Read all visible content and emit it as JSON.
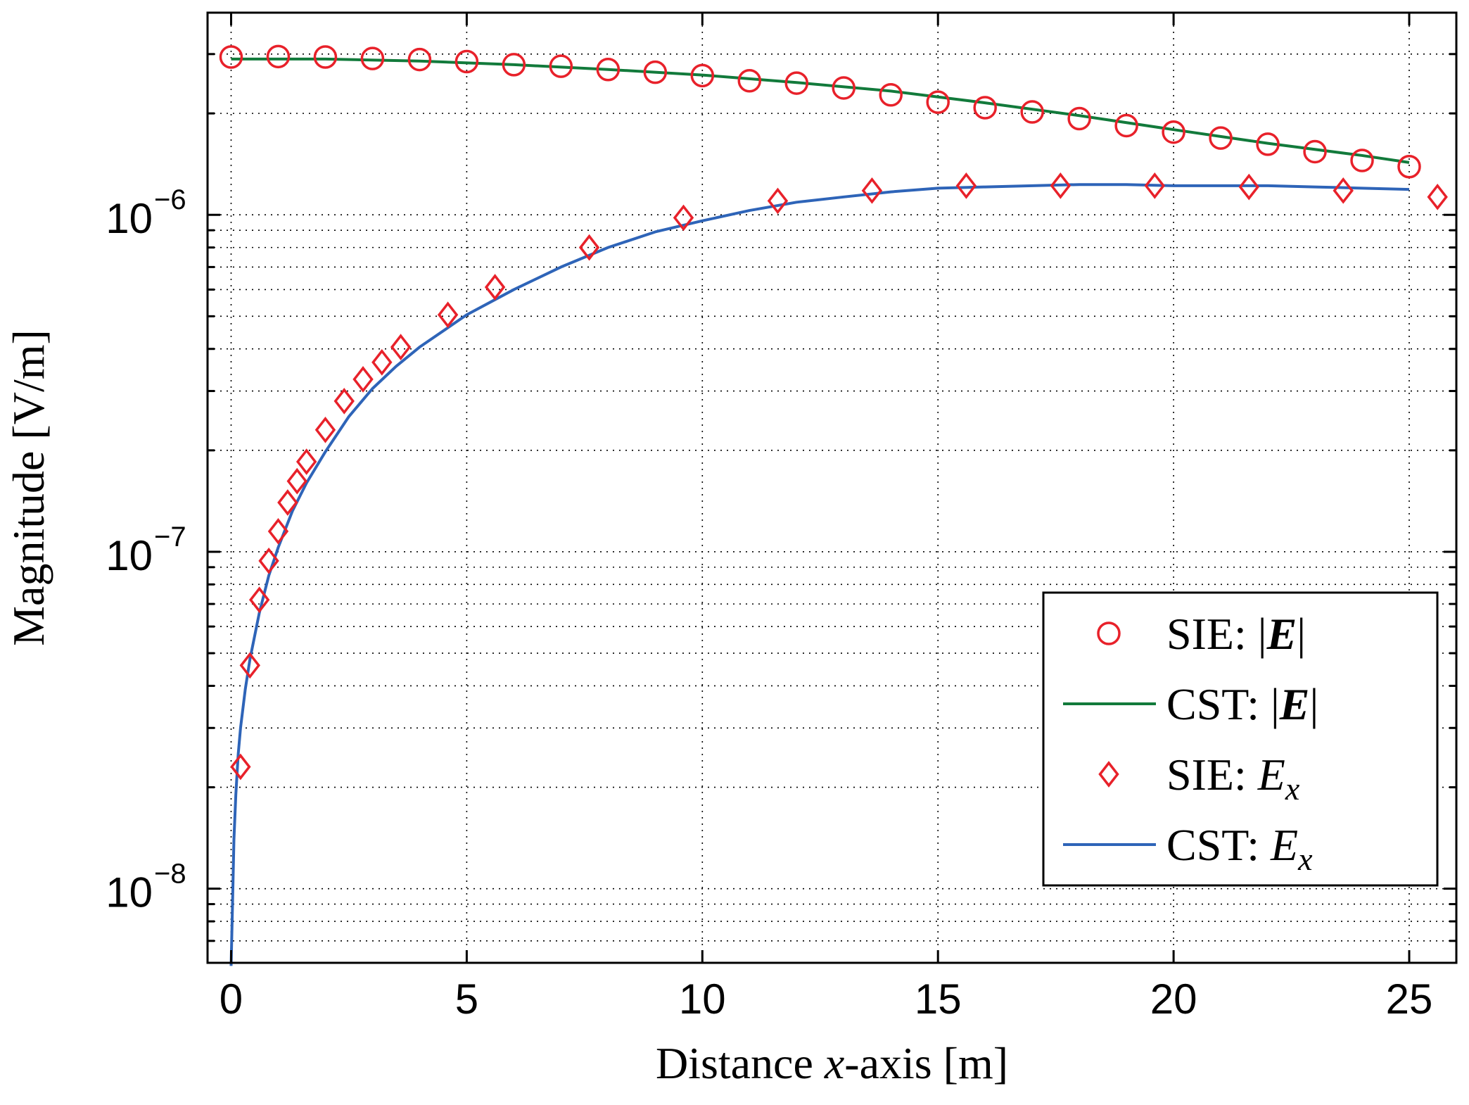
{
  "chart_data": {
    "type": "line",
    "title": "",
    "xlabel_parts": {
      "pre": "Distance ",
      "var": "x",
      "post": "-axis [m]"
    },
    "ylabel": "Magnitude [V/m]",
    "xlim": [
      -0.5,
      26.0
    ],
    "ylim_log10": [
      -8.22,
      -5.4
    ],
    "xscale": "linear",
    "yscale": "log",
    "grid": true,
    "legend_position": "bottom-right",
    "x_ticks": [
      0,
      5,
      10,
      15,
      20,
      25
    ],
    "x_tick_labels": [
      "0",
      "5",
      "10",
      "15",
      "20",
      "25"
    ],
    "y_ticks_log10": [
      -8,
      -7,
      -6
    ],
    "y_tick_labels": [
      {
        "base": "10",
        "exp": "−8"
      },
      {
        "base": "10",
        "exp": "−7"
      },
      {
        "base": "10",
        "exp": "−6"
      }
    ],
    "legend": [
      {
        "key": "sie_e",
        "label_prefix": "SIE: ",
        "expr": "|E|",
        "marker": "circle",
        "color": "#e8212a"
      },
      {
        "key": "cst_e",
        "label_prefix": "CST: ",
        "expr": "|E|",
        "marker": "line",
        "color": "#127a3b"
      },
      {
        "key": "sie_ex",
        "label_prefix": "SIE: ",
        "expr": "E_x",
        "marker": "diamond",
        "color": "#e8212a"
      },
      {
        "key": "cst_ex",
        "label_prefix": "CST: ",
        "expr": "E_x",
        "marker": "line",
        "color": "#2e64b8"
      }
    ],
    "series": [
      {
        "name": "SIE: |E|",
        "kind": "marker",
        "marker": "circle",
        "color": "#e8212a",
        "x": [
          0,
          1,
          2,
          3,
          4,
          5,
          6,
          7,
          8,
          9,
          10,
          11,
          12,
          13,
          14,
          15,
          16,
          17,
          18,
          19,
          20,
          21,
          22,
          23,
          24,
          25
        ],
        "y": [
          2.94e-06,
          2.95e-06,
          2.94e-06,
          2.91e-06,
          2.89e-06,
          2.85e-06,
          2.79e-06,
          2.76e-06,
          2.7e-06,
          2.65e-06,
          2.59e-06,
          2.5e-06,
          2.46e-06,
          2.38e-06,
          2.27e-06,
          2.16e-06,
          2.08e-06,
          2.02e-06,
          1.93e-06,
          1.84e-06,
          1.76e-06,
          1.69e-06,
          1.62e-06,
          1.54e-06,
          1.45e-06,
          1.39e-06
        ]
      },
      {
        "name": "CST: |E|",
        "kind": "line",
        "color": "#127a3b",
        "x": [
          0,
          2,
          4,
          6,
          8,
          10,
          12,
          14,
          16,
          18,
          20,
          22,
          24,
          25
        ],
        "y": [
          2.9e-06,
          2.9e-06,
          2.86e-06,
          2.79e-06,
          2.7e-06,
          2.6e-06,
          2.47e-06,
          2.33e-06,
          2.15e-06,
          1.97e-06,
          1.79e-06,
          1.63e-06,
          1.5e-06,
          1.43e-06
        ]
      },
      {
        "name": "SIE: E_x",
        "kind": "marker",
        "marker": "diamond",
        "color": "#e8212a",
        "x": [
          0.2,
          0.4,
          0.6,
          0.8,
          1.0,
          1.2,
          1.4,
          1.6,
          2.0,
          2.4,
          2.8,
          3.2,
          3.6,
          4.6,
          5.6,
          7.6,
          9.6,
          11.6,
          13.6,
          15.6,
          17.6,
          19.6,
          21.6,
          23.6,
          25.6
        ],
        "y": [
          2.3e-08,
          4.6e-08,
          7.2e-08,
          9.4e-08,
          1.15e-07,
          1.4e-07,
          1.62e-07,
          1.85e-07,
          2.3e-07,
          2.8e-07,
          3.25e-07,
          3.65e-07,
          4.05e-07,
          5.05e-07,
          6.1e-07,
          8e-07,
          9.8e-07,
          1.1e-06,
          1.18e-06,
          1.22e-06,
          1.22e-06,
          1.22e-06,
          1.21e-06,
          1.18e-06,
          1.13e-06
        ]
      },
      {
        "name": "CST: E_x",
        "kind": "line",
        "color": "#2e64b8",
        "x": [
          0,
          0.03,
          0.06,
          0.1,
          0.15,
          0.2,
          0.3,
          0.4,
          0.6,
          0.8,
          1.0,
          1.3,
          1.6,
          2.0,
          2.5,
          3.0,
          3.5,
          4.0,
          5.0,
          6.0,
          7.0,
          8.0,
          9.0,
          10.0,
          11.0,
          12.0,
          13.0,
          14.0,
          15.0,
          16.0,
          17.0,
          18.0,
          19.0,
          20.0,
          21.0,
          22.0,
          23.0,
          24.0,
          25.0
        ],
        "y": [
          5.9e-09,
          9e-09,
          1.4e-08,
          1.9e-08,
          2.5e-08,
          3e-08,
          3.9e-08,
          4.8e-08,
          6.6e-08,
          8.5e-08,
          1.03e-07,
          1.32e-07,
          1.6e-07,
          1.98e-07,
          2.52e-07,
          3.05e-07,
          3.55e-07,
          4.05e-07,
          5.05e-07,
          6e-07,
          7e-07,
          8e-07,
          8.9e-07,
          9.6e-07,
          1.03e-06,
          1.09e-06,
          1.13e-06,
          1.17e-06,
          1.2e-06,
          1.21e-06,
          1.22e-06,
          1.23e-06,
          1.23e-06,
          1.22e-06,
          1.22e-06,
          1.22e-06,
          1.21e-06,
          1.2e-06,
          1.19e-06
        ]
      }
    ]
  }
}
